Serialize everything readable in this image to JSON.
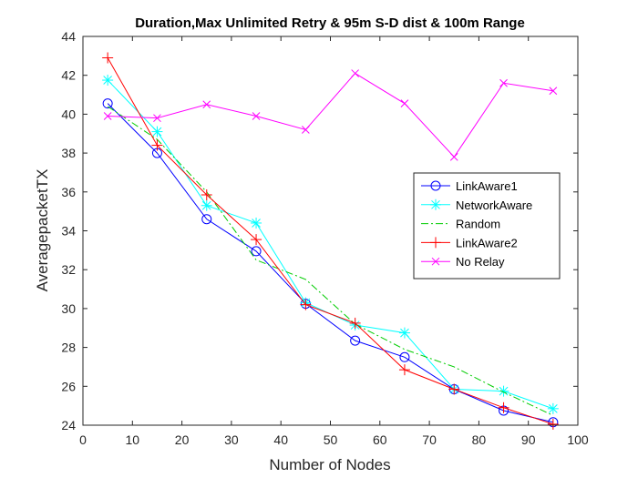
{
  "chart_data": {
    "type": "line",
    "title": "Duration,Max Unlimited Retry & 95m S-D dist & 100m Range",
    "xlabel": "Number of Nodes",
    "ylabel": "AveragepacketTX",
    "xlim": [
      0,
      100
    ],
    "ylim": [
      24,
      44
    ],
    "xticks": [
      "0",
      "10",
      "20",
      "30",
      "40",
      "50",
      "60",
      "70",
      "80",
      "90",
      "100"
    ],
    "yticks": [
      "24",
      "26",
      "28",
      "30",
      "32",
      "34",
      "36",
      "38",
      "40",
      "42",
      "44"
    ],
    "grid": false,
    "legend_position": "right",
    "x": [
      5,
      15,
      25,
      35,
      45,
      55,
      65,
      75,
      85,
      95
    ],
    "series": [
      {
        "name": "LinkAware1",
        "color": "#0000ff",
        "marker": "circle",
        "line": "solid",
        "values": [
          40.55,
          38.0,
          34.6,
          32.95,
          30.25,
          28.35,
          27.5,
          25.85,
          24.75,
          24.15
        ]
      },
      {
        "name": "NetworkAware",
        "color": "#00ffff",
        "marker": "asterisk",
        "line": "solid",
        "values": [
          41.75,
          39.1,
          35.3,
          34.4,
          30.3,
          29.15,
          28.75,
          25.85,
          25.75,
          24.85
        ]
      },
      {
        "name": "Random",
        "color": "#00cc00",
        "marker": "none",
        "line": "dashdot",
        "values": [
          40.4,
          38.7,
          36.0,
          32.5,
          31.5,
          29.2,
          27.9,
          27.0,
          25.7,
          24.5
        ]
      },
      {
        "name": "LinkAware2",
        "color": "#ff0000",
        "marker": "plus",
        "line": "solid",
        "values": [
          42.9,
          38.4,
          35.85,
          33.55,
          30.2,
          29.25,
          26.85,
          25.85,
          24.9,
          24.05
        ]
      },
      {
        "name": "No Relay",
        "color": "#ff00ff",
        "marker": "x",
        "line": "solid",
        "values": [
          39.9,
          39.8,
          40.5,
          39.9,
          39.2,
          42.1,
          40.55,
          37.8,
          41.6,
          41.2
        ]
      }
    ]
  }
}
